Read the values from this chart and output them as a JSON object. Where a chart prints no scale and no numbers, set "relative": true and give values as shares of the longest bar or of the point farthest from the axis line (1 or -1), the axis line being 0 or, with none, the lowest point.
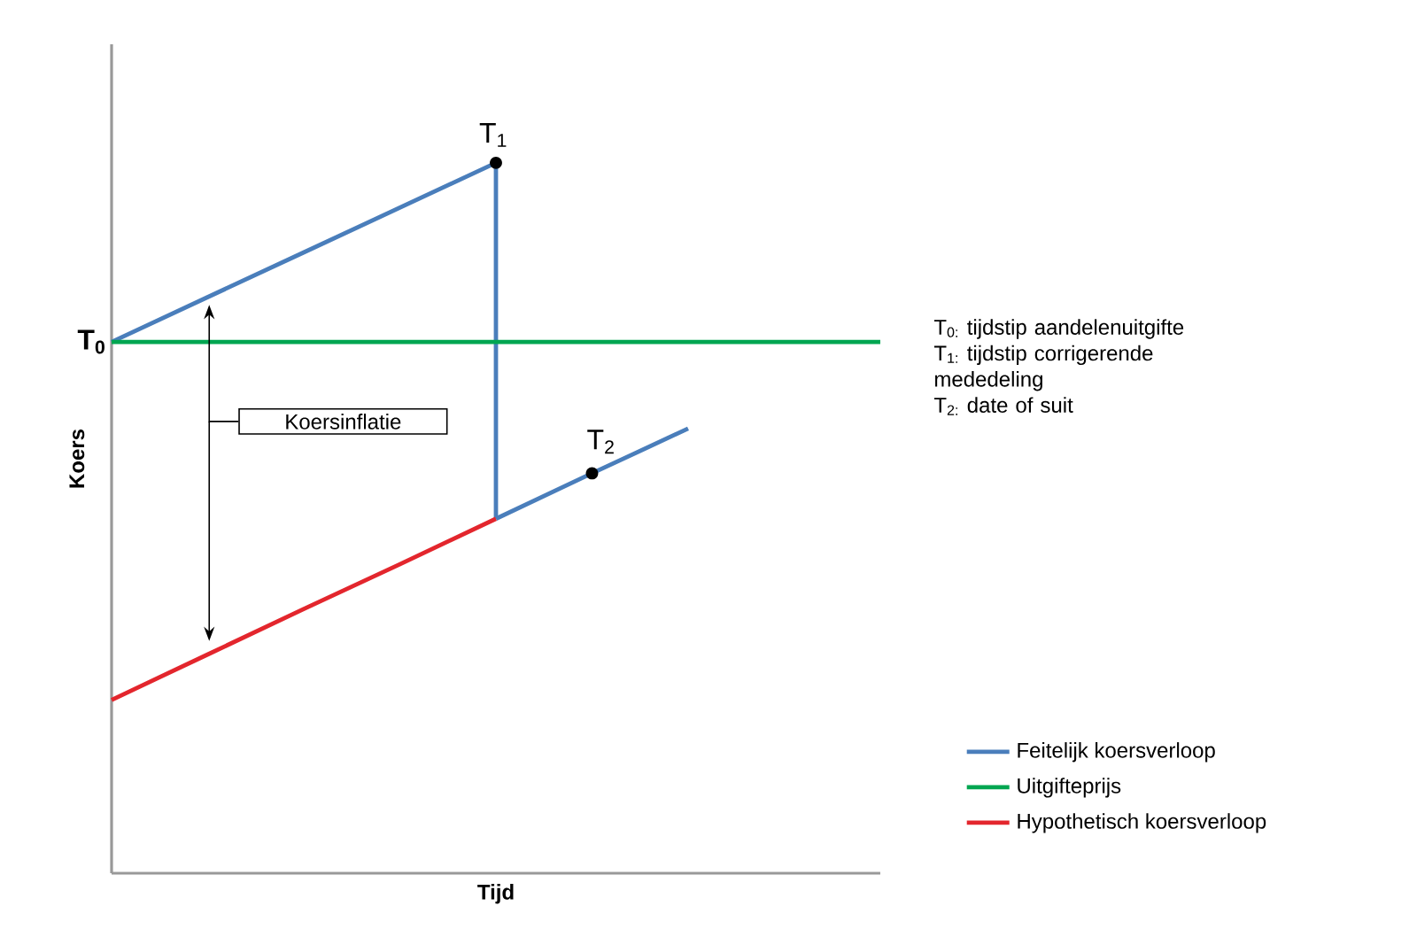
{
  "chart_data": {
    "type": "line",
    "relative": true,
    "xlabel": "Tijd",
    "ylabel": "Koers",
    "legend": "bottom right",
    "categories": [
      null,
      null,
      null,
      null,
      null,
      null,
      null,
      null,
      null
    ],
    "series": [
      {
        "name": "Feitelijk koersverloop",
        "color": "#4a7ebb",
        "values": [
          0.748,
          0.811,
          0.874,
          0.937,
          1,
          null,
          null,
          null,
          null
        ]
      },
      {
        "color": "#4a7ebb",
        "values": [
          null,
          null,
          null,
          null,
          0.499,
          0.563,
          0.626,
          null,
          null
        ]
      },
      {
        "name": "Uitgifteprijs",
        "color": "#00a651",
        "values": [
          0.748,
          0.748,
          0.748,
          0.748,
          0.748,
          0.748,
          0.748,
          0.748,
          0.748
        ]
      },
      {
        "name": "Hypothetisch koersverloop",
        "color": "#e3262d",
        "values": [
          0.244,
          0.308,
          0.372,
          0.435,
          0.499,
          null,
          null,
          null,
          null
        ]
      }
    ],
    "annotations": [
      "T$_{0}$",
      "T$_{1}$",
      "T$_{2}$",
      "Koersinflatie",
      "T$_{0:}$ tijdstip aandelenuitgifte",
      "T$_{1:}$ tijdstip corrigerende mededeling",
      "T$_{2:}$ date of suit"
    ]
  }
}
